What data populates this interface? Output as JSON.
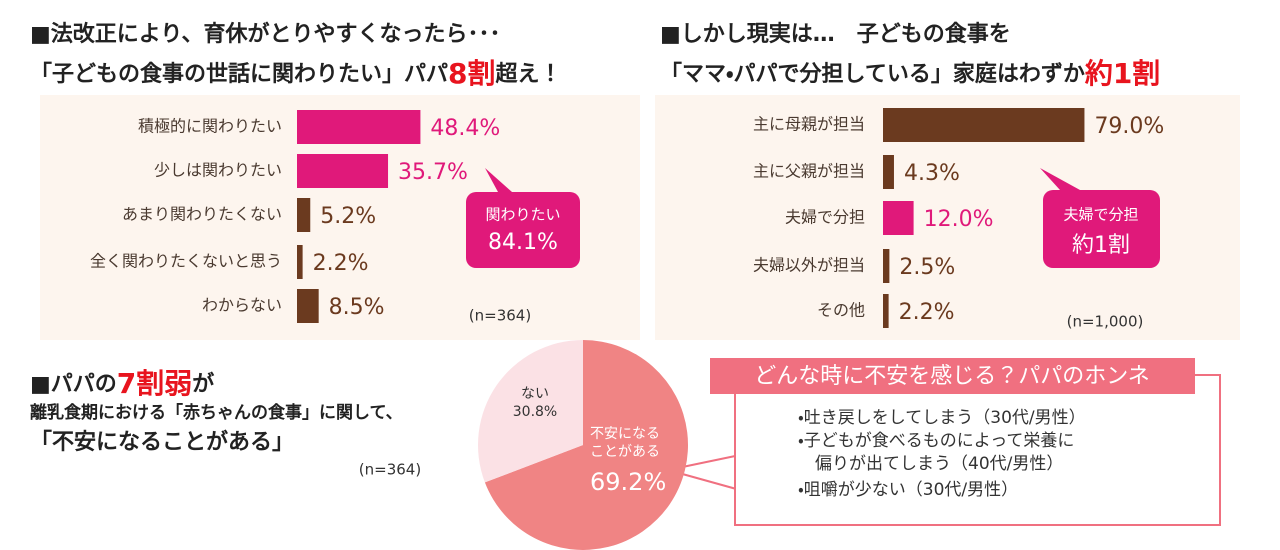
{
  "chart_data": [
    {
      "type": "hbar",
      "title_lines": [
        [
          {
            "text": "■法改正により、育休がとりやすくなったら･･･"
          }
        ],
        [
          {
            "text": "「子どもの食事の世話に関わりたい」パパ"
          },
          {
            "text": "8割",
            "color": "#e8141e"
          },
          {
            "text": "超え！"
          }
        ]
      ],
      "categories": [
        "積極的に関わりたい",
        "少しは関わりたい",
        "あまり関わりたくない",
        "全く関わりたくないと思う",
        "わからない"
      ],
      "values": [
        48.4,
        35.7,
        5.2,
        2.2,
        8.5
      ],
      "value_labels": [
        "48.4%",
        "35.7%",
        "5.2%",
        "2.2%",
        "8.5%"
      ],
      "colors": [
        "#e0197a",
        "#e0197a",
        "#6b3a1f",
        "#6b3a1f",
        "#6b3a1f"
      ],
      "annotations": [
        "関わりたい",
        "84.1%"
      ],
      "note": "(n=364)"
    },
    {
      "type": "hbar",
      "title_lines": [
        [
          {
            "text": "■しかし現実は…　子どもの食事を"
          }
        ],
        [
          {
            "text": "「ママ・パパで分担している」家庭はわずか"
          },
          {
            "text": "約1割",
            "color": "#e8141e"
          }
        ]
      ],
      "categories": [
        "主に母親が担当",
        "主に父親が担当",
        "夫婦で分担",
        "夫婦以外が担当",
        "その他"
      ],
      "values": [
        79.0,
        4.3,
        12.0,
        2.5,
        2.2
      ],
      "value_labels": [
        "79.0%",
        "4.3%",
        "12.0%",
        "2.5%",
        "2.2%"
      ],
      "colors": [
        "#6b3a1f",
        "#6b3a1f",
        "#e0197a",
        "#6b3a1f",
        "#6b3a1f"
      ],
      "annotations": [
        "夫婦で分担",
        "約1割"
      ],
      "note": "(n=1,000)"
    },
    {
      "type": "pie",
      "title_lines": [
        [
          {
            "text": "■パパの"
          },
          {
            "text": "7割弱",
            "color": "#e8141e"
          },
          {
            "text": "が"
          }
        ],
        [
          {
            "text": "離乳食期における「赤ちゃんの食事」に関して、"
          }
        ],
        [
          {
            "text": "「不安になることがある」"
          }
        ]
      ],
      "categories": [
        "不安になることがある",
        "ない"
      ],
      "values": [
        69.2,
        30.8
      ],
      "value_labels": [
        "69.2%",
        "30.8%"
      ],
      "colors": [
        "#f08484",
        "#fbe1e5"
      ],
      "note": "(n=364)"
    }
  ],
  "callout": {
    "title": "どんな時に不安を感じる？パパのホンネ",
    "items": [
      "・吐き戻しをしてしまう（30代/男性）",
      "・子どもが食べるものによって栄養に",
      "　偏りが出てしまう（40代/男性）",
      "・咀嚼が少ない（30代/男性）"
    ]
  }
}
